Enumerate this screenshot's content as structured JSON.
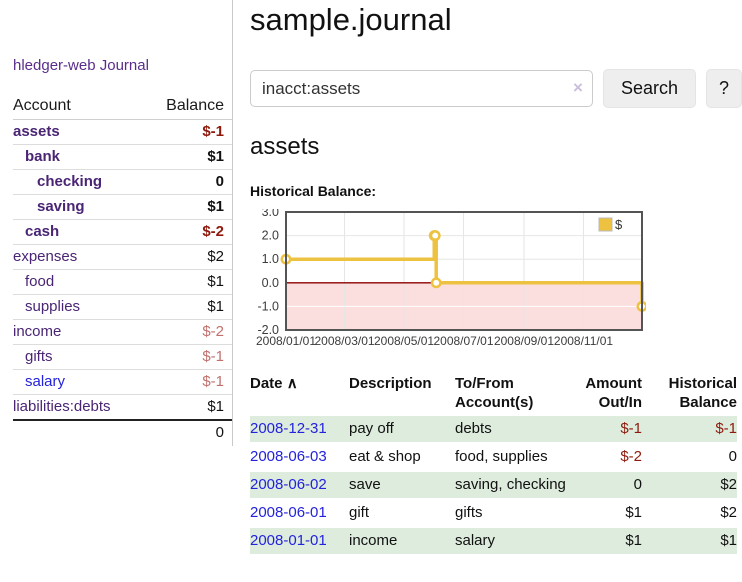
{
  "app": {
    "title": "hledger-web",
    "journal": "Journal"
  },
  "sidebar": {
    "header": {
      "account": "Account",
      "balance": "Balance"
    },
    "rows": [
      {
        "account": "assets",
        "balance": "$-1",
        "indent": 0,
        "bold": true,
        "tone": "neg",
        "link": "purple"
      },
      {
        "account": "bank",
        "balance": "$1",
        "indent": 1,
        "bold": true,
        "tone": "plain",
        "link": "purple"
      },
      {
        "account": "checking",
        "balance": "0",
        "indent": 2,
        "bold": true,
        "tone": "plain",
        "link": "purple"
      },
      {
        "account": "saving",
        "balance": "$1",
        "indent": 2,
        "bold": true,
        "tone": "plain",
        "link": "purple"
      },
      {
        "account": "cash",
        "balance": "$-2",
        "indent": 1,
        "bold": true,
        "tone": "neg",
        "link": "purple"
      },
      {
        "account": "expenses",
        "balance": "$2",
        "indent": 0,
        "bold": false,
        "tone": "plain",
        "link": "purple"
      },
      {
        "account": "food",
        "balance": "$1",
        "indent": 1,
        "bold": false,
        "tone": "plain",
        "link": "purple"
      },
      {
        "account": "supplies",
        "balance": "$1",
        "indent": 1,
        "bold": false,
        "tone": "plain",
        "link": "purple"
      },
      {
        "account": "income",
        "balance": "$-2",
        "indent": 0,
        "bold": false,
        "tone": "rose",
        "link": "purple"
      },
      {
        "account": "gifts",
        "balance": "$-1",
        "indent": 1,
        "bold": false,
        "tone": "rose",
        "link": "purple"
      },
      {
        "account": "salary",
        "balance": "$-1",
        "indent": 1,
        "bold": false,
        "tone": "rose",
        "link": "blue"
      },
      {
        "account": "liabilities:debts",
        "balance": "$1",
        "indent": 0,
        "bold": false,
        "tone": "plain",
        "link": "purple"
      }
    ],
    "total": "0"
  },
  "main": {
    "title": "sample.journal"
  },
  "search": {
    "value": "inacct:assets",
    "clear_icon": "×",
    "button": "Search",
    "help": "?"
  },
  "account_page": {
    "title": "assets",
    "chart_label": "Historical Balance:"
  },
  "chart_data": {
    "type": "line",
    "title": "Historical Balance of assets",
    "step": true,
    "series": [
      {
        "name": "$",
        "color": "#EDC240",
        "points": [
          [
            "2008-01-01",
            1
          ],
          [
            "2008-06-01",
            2
          ],
          [
            "2008-06-02",
            2
          ],
          [
            "2008-06-03",
            0
          ],
          [
            "2008-12-31",
            -1
          ]
        ]
      }
    ],
    "xlim": [
      "2008-01-01",
      "2008-12-31"
    ],
    "ylim": [
      -2,
      3
    ],
    "y_ticks": [
      3,
      2,
      1,
      0,
      -1,
      -2
    ],
    "x_tick_labels": [
      "2008/01/01",
      "2008/03/01",
      "2008/05/01",
      "2008/07/01",
      "2008/09/01",
      "2008/11/01"
    ],
    "grid": true,
    "legend_position": "top-right",
    "legend_label": "$",
    "negative_region_color": "#FBDEDE",
    "zero_line_color": "#8B0000",
    "grid_color": "#E6E6E6",
    "border_color": "#545454"
  },
  "register": {
    "header": {
      "date": "Date",
      "sort_icon": "∧",
      "description": "Description",
      "accounts": "To/From Account(s)",
      "amount": "Amount Out/In",
      "balance": "Historical Balance"
    },
    "rows": [
      {
        "date": "2008-12-31",
        "description": "pay off",
        "accounts": "debts",
        "amount": "$-1",
        "amount_neg": true,
        "balance": "$-1",
        "balance_neg": true,
        "shade": true
      },
      {
        "date": "2008-06-03",
        "description": "eat & shop",
        "accounts": "food, supplies",
        "amount": "$-2",
        "amount_neg": true,
        "balance": "0",
        "balance_neg": false,
        "shade": false
      },
      {
        "date": "2008-06-02",
        "description": "save",
        "accounts": "saving, checking",
        "amount": "0",
        "amount_neg": false,
        "balance": "$2",
        "balance_neg": false,
        "shade": true
      },
      {
        "date": "2008-06-01",
        "description": "gift",
        "accounts": "gifts",
        "amount": "$1",
        "amount_neg": false,
        "balance": "$2",
        "balance_neg": false,
        "shade": false
      },
      {
        "date": "2008-01-01",
        "description": "income",
        "accounts": "salary",
        "amount": "$1",
        "amount_neg": false,
        "balance": "$1",
        "balance_neg": false,
        "shade": true
      }
    ]
  }
}
